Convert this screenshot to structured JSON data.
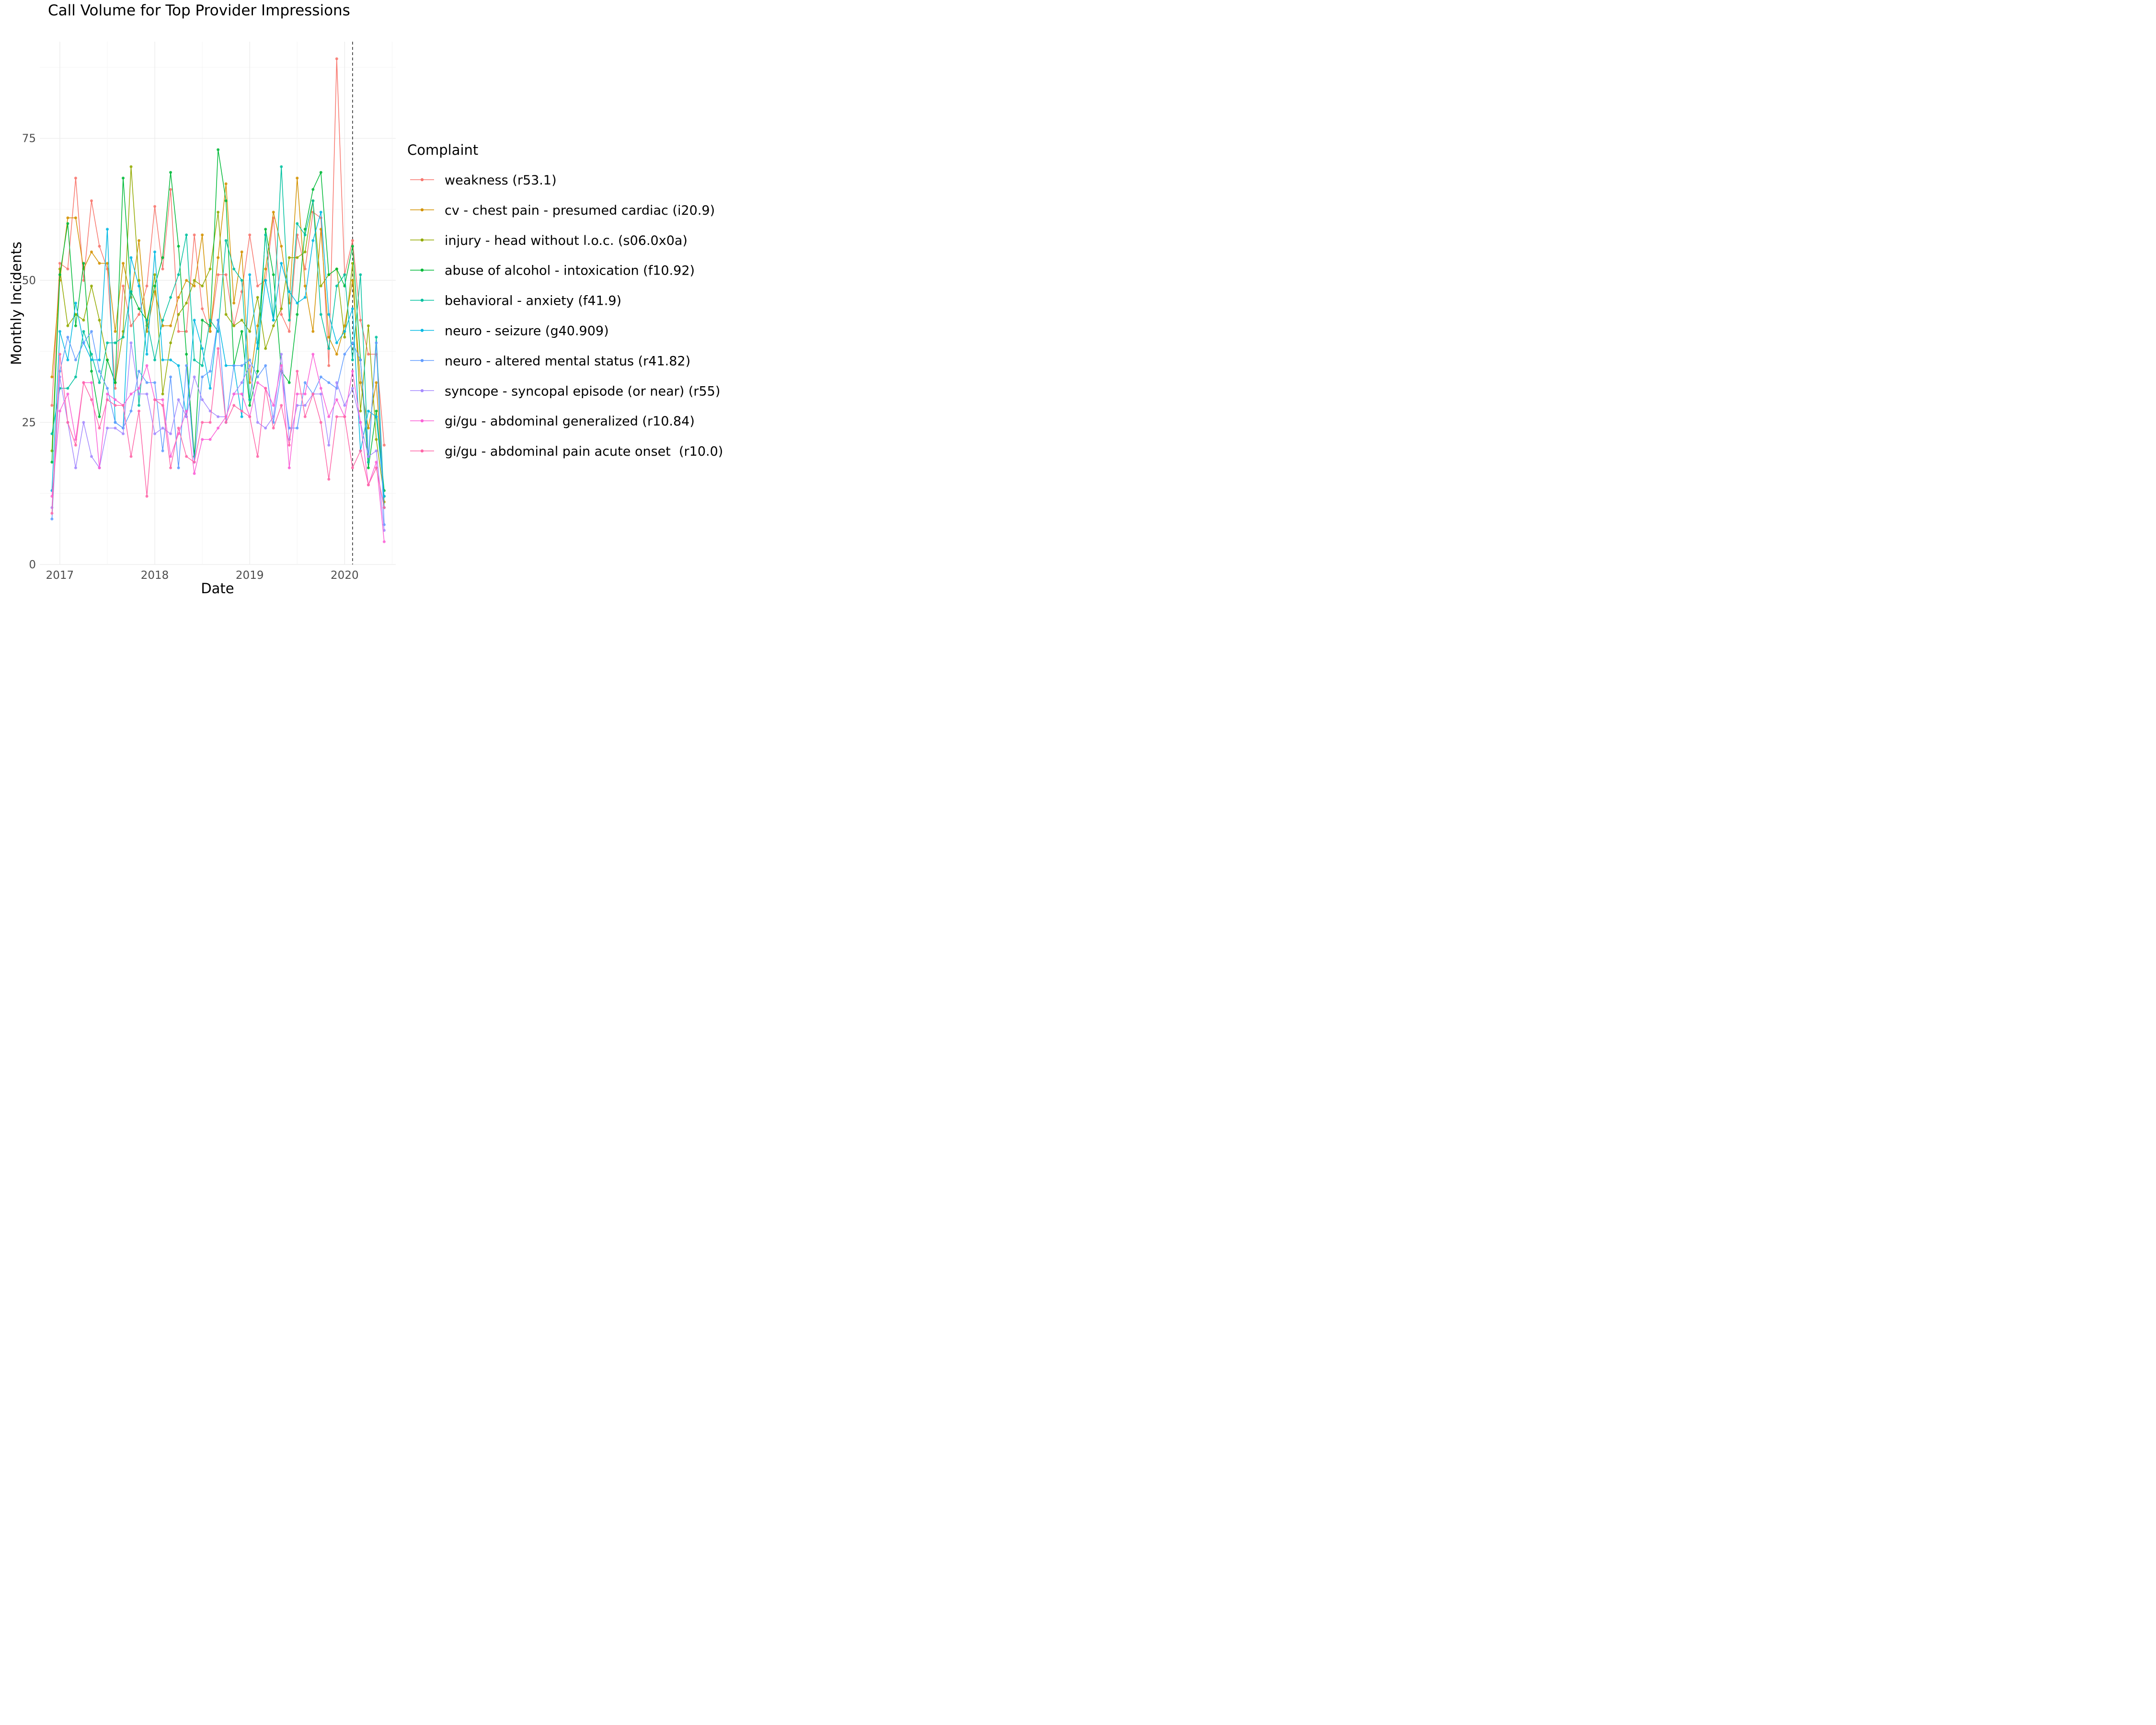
{
  "chart_data": {
    "type": "line",
    "title": "Call Volume for Top Provider Impressions",
    "xlabel": "Date",
    "ylabel": "Monthly Incidents",
    "x_ticks": [
      "2017",
      "2018",
      "2019",
      "2020"
    ],
    "y_ticks": [
      0,
      25,
      50,
      75
    ],
    "xlim": [
      "2016-10-15",
      "2020-07-15"
    ],
    "ylim": [
      0,
      92
    ],
    "grid": true,
    "legend_title": "Complaint",
    "legend_position": "right",
    "reference_line": {
      "x": "2020-02-01",
      "style": "dashed",
      "color": "#333333"
    },
    "x": [
      "2016-12",
      "2017-01",
      "2017-02",
      "2017-03",
      "2017-04",
      "2017-05",
      "2017-06",
      "2017-07",
      "2017-08",
      "2017-09",
      "2017-10",
      "2017-11",
      "2017-12",
      "2018-01",
      "2018-02",
      "2018-03",
      "2018-04",
      "2018-05",
      "2018-06",
      "2018-07",
      "2018-08",
      "2018-09",
      "2018-10",
      "2018-11",
      "2018-12",
      "2019-01",
      "2019-02",
      "2019-03",
      "2019-04",
      "2019-05",
      "2019-06",
      "2019-07",
      "2019-08",
      "2019-09",
      "2019-10",
      "2019-11",
      "2019-12",
      "2020-01",
      "2020-02",
      "2020-03",
      "2020-04",
      "2020-05",
      "2020-06"
    ],
    "series": [
      {
        "name": "weakness (r53.1)",
        "color": "#F8766D",
        "values": [
          28,
          53,
          52,
          68,
          50,
          64,
          56,
          52,
          31,
          49,
          42,
          44,
          49,
          63,
          52,
          66,
          41,
          41,
          58,
          45,
          41,
          51,
          51,
          42,
          48,
          58,
          49,
          50,
          61,
          44,
          41,
          58,
          52,
          62,
          61,
          35,
          89,
          51,
          57,
          43,
          37,
          37,
          21
        ]
      },
      {
        "name": "cv - chest pain - presumed cardiac (i20.9)",
        "color": "#D39200",
        "values": [
          33,
          50,
          61,
          61,
          52,
          55,
          53,
          53,
          41,
          53,
          47,
          57,
          41,
          48,
          42,
          42,
          47,
          50,
          49,
          58,
          41,
          54,
          67,
          46,
          55,
          32,
          42,
          52,
          62,
          56,
          46,
          68,
          49,
          41,
          59,
          40,
          37,
          42,
          50,
          32,
          24,
          32,
          11
        ]
      },
      {
        "name": "injury - head without l.o.c. (s06.0x0a)",
        "color": "#93AA00",
        "values": [
          20,
          52,
          42,
          44,
          43,
          49,
          43,
          36,
          32,
          41,
          70,
          50,
          42,
          51,
          30,
          39,
          44,
          46,
          50,
          49,
          52,
          62,
          44,
          42,
          43,
          41,
          47,
          38,
          42,
          45,
          54,
          54,
          55,
          64,
          49,
          51,
          52,
          40,
          53,
          27,
          42,
          22,
          12
        ]
      },
      {
        "name": "abuse of alcohol - intoxication (f10.92)",
        "color": "#00BA38",
        "values": [
          18,
          51,
          60,
          42,
          53,
          34,
          26,
          36,
          32,
          68,
          48,
          45,
          43,
          49,
          54,
          69,
          56,
          37,
          19,
          43,
          42,
          73,
          64,
          35,
          41,
          28,
          34,
          59,
          51,
          34,
          32,
          44,
          59,
          66,
          69,
          51,
          52,
          49,
          56,
          36,
          17,
          27,
          13
        ]
      },
      {
        "name": "behavioral - anxiety (f41.9)",
        "color": "#00C19F",
        "values": [
          23,
          31,
          31,
          33,
          41,
          37,
          32,
          39,
          39,
          40,
          48,
          28,
          43,
          36,
          43,
          47,
          51,
          58,
          36,
          35,
          43,
          41,
          57,
          52,
          50,
          29,
          39,
          58,
          43,
          70,
          43,
          60,
          58,
          64,
          44,
          38,
          49,
          51,
          36,
          51,
          18,
          40,
          10
        ]
      },
      {
        "name": "neuro - seizure (g40.909)",
        "color": "#00B9E3",
        "values": [
          13,
          41,
          36,
          46,
          39,
          36,
          36,
          59,
          25,
          24,
          54,
          49,
          37,
          55,
          36,
          36,
          35,
          26,
          43,
          38,
          31,
          43,
          35,
          35,
          26,
          51,
          38,
          50,
          43,
          53,
          48,
          46,
          47,
          57,
          62,
          44,
          39,
          41,
          45,
          20,
          27,
          26,
          12
        ]
      },
      {
        "name": "neuro - altered mental status (r41.82)",
        "color": "#619CFF",
        "values": [
          8,
          34,
          40,
          36,
          39,
          41,
          34,
          31,
          25,
          24,
          27,
          34,
          32,
          32,
          20,
          33,
          17,
          35,
          18,
          33,
          34,
          43,
          25,
          35,
          35,
          36,
          33,
          35,
          25,
          34,
          24,
          24,
          32,
          30,
          33,
          32,
          31,
          37,
          39,
          36,
          19,
          39,
          7
        ]
      },
      {
        "name": "syncope - syncopal episode (or near) (r55)",
        "color": "#A58AFF",
        "values": [
          10,
          33,
          25,
          17,
          25,
          19,
          17,
          24,
          24,
          23,
          39,
          30,
          30,
          23,
          24,
          23,
          29,
          26,
          33,
          29,
          27,
          26,
          26,
          30,
          32,
          35,
          25,
          24,
          26,
          37,
          22,
          28,
          28,
          30,
          30,
          21,
          32,
          28,
          31,
          25,
          19,
          20,
          6
        ]
      },
      {
        "name": "gi/gu - abdominal generalized (r10.84)",
        "color": "#FB61D7",
        "values": [
          12,
          27,
          30,
          22,
          32,
          32,
          17,
          30,
          29,
          28,
          30,
          31,
          35,
          29,
          29,
          19,
          23,
          27,
          16,
          22,
          22,
          24,
          26,
          30,
          30,
          26,
          32,
          31,
          28,
          35,
          17,
          30,
          30,
          37,
          31,
          26,
          29,
          26,
          34,
          25,
          14,
          18,
          4
        ]
      },
      {
        "name": "gi/gu - abdominal pain acute onset  (r10.0)",
        "color": "#FF66A8",
        "values": [
          9,
          37,
          25,
          21,
          32,
          29,
          24,
          29,
          28,
          28,
          19,
          27,
          12,
          29,
          28,
          17,
          24,
          19,
          18,
          25,
          25,
          38,
          25,
          28,
          27,
          26,
          19,
          31,
          24,
          28,
          21,
          34,
          26,
          30,
          25,
          15,
          26,
          26,
          17,
          20,
          14,
          17,
          10
        ]
      }
    ]
  }
}
